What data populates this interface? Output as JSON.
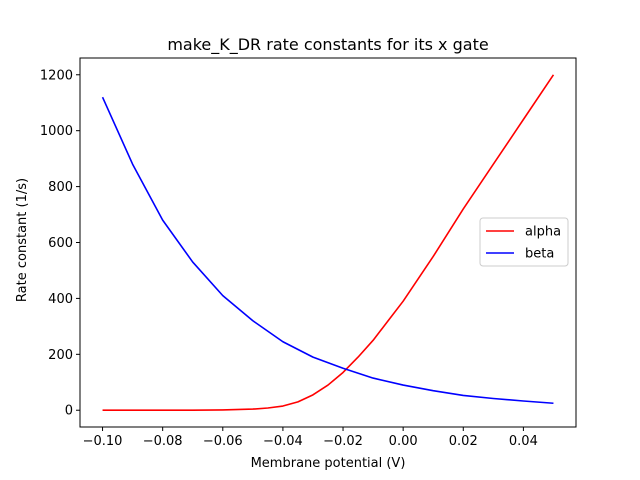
{
  "chart_data": {
    "type": "line",
    "title": "make_K_DR rate constants for its x gate",
    "xlabel": "Membrane potential (V)",
    "ylabel": "Rate constant (1/s)",
    "xlim": [
      -0.1075,
      0.0575
    ],
    "ylim": [
      -60,
      1260
    ],
    "xticks": [
      -0.1,
      -0.08,
      -0.06,
      -0.04,
      -0.02,
      0.0,
      0.02,
      0.04
    ],
    "xtick_labels": [
      "−0.10",
      "−0.08",
      "−0.06",
      "−0.04",
      "−0.02",
      "0.00",
      "0.02",
      "0.04"
    ],
    "yticks": [
      0,
      200,
      400,
      600,
      800,
      1000,
      1200
    ],
    "ytick_labels": [
      "0",
      "200",
      "400",
      "600",
      "800",
      "1000",
      "1200"
    ],
    "legend_position": "center-right",
    "grid": false,
    "series": [
      {
        "name": "alpha",
        "color": "#ff0000",
        "x": [
          -0.1,
          -0.09,
          -0.08,
          -0.07,
          -0.06,
          -0.05,
          -0.045,
          -0.04,
          -0.035,
          -0.03,
          -0.025,
          -0.02,
          -0.015,
          -0.01,
          -0.005,
          0.0,
          0.01,
          0.02,
          0.03,
          0.04,
          0.05
        ],
        "y": [
          0,
          0,
          0,
          0,
          1,
          4,
          8,
          15,
          30,
          55,
          90,
          135,
          190,
          250,
          320,
          390,
          550,
          720,
          880,
          1040,
          1200
        ]
      },
      {
        "name": "beta",
        "color": "#0000ff",
        "x": [
          -0.1,
          -0.09,
          -0.08,
          -0.07,
          -0.06,
          -0.05,
          -0.04,
          -0.03,
          -0.02,
          -0.01,
          0.0,
          0.01,
          0.02,
          0.03,
          0.04,
          0.05
        ],
        "y": [
          1120,
          880,
          680,
          530,
          410,
          320,
          245,
          190,
          150,
          115,
          90,
          70,
          53,
          42,
          33,
          25
        ]
      }
    ]
  }
}
